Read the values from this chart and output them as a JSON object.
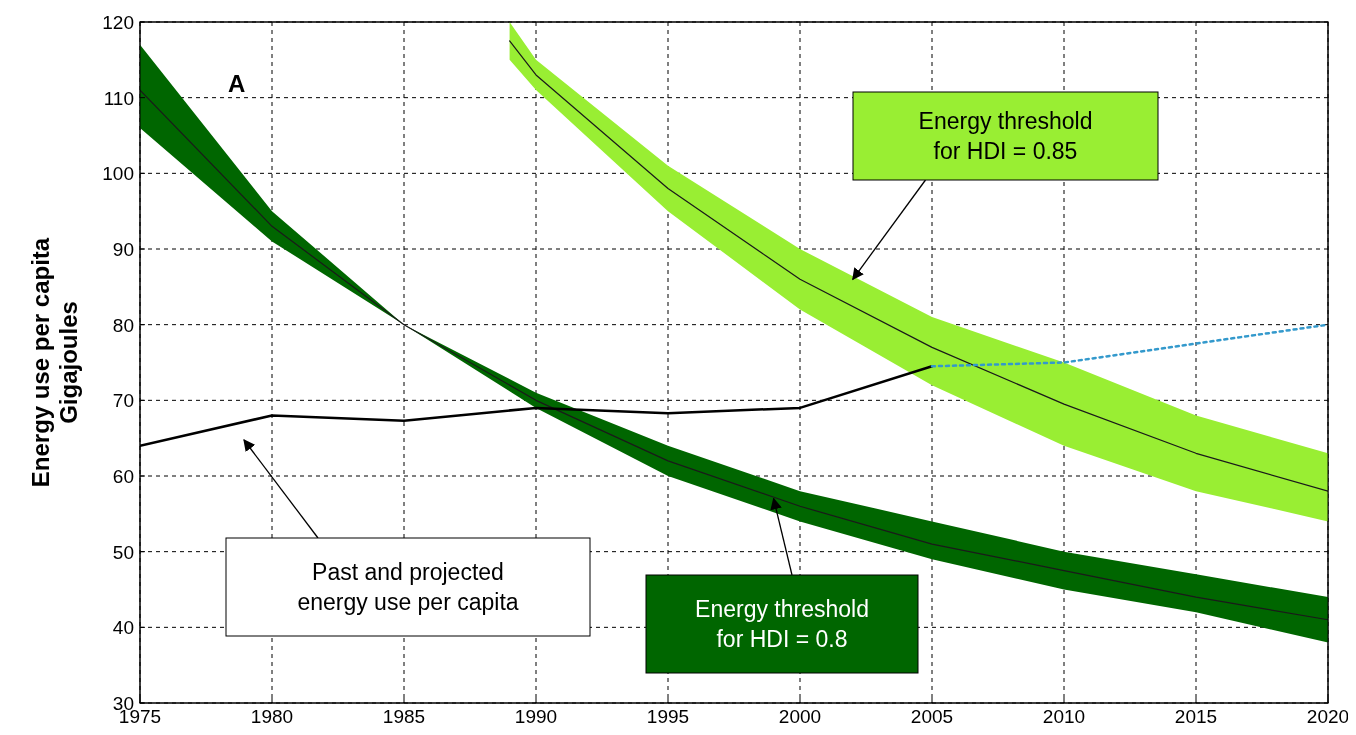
{
  "chart_data": {
    "type": "line",
    "ylabel": "Energy use per capita\nGigajoules",
    "xlim": [
      1975,
      2020
    ],
    "xticks": [
      1975,
      1980,
      1985,
      1990,
      1995,
      2000,
      2005,
      2010,
      2015,
      2020
    ],
    "ylim": [
      30,
      120
    ],
    "yticks": [
      30,
      40,
      50,
      60,
      70,
      80,
      90,
      100,
      110,
      120
    ],
    "grid": true,
    "marker": "none",
    "series": [
      {
        "color": "#1a1a1a",
        "x": [
          1975,
          1980,
          1985,
          1990,
          1995,
          2000,
          2005,
          2010,
          2015,
          2020
        ],
        "values": [
          111,
          93,
          80,
          70,
          62,
          56,
          51,
          47.5,
          44,
          41
        ],
        "lower": [
          106,
          91,
          80,
          69,
          60,
          54,
          49,
          45,
          42,
          38
        ],
        "upper": [
          117,
          95,
          80,
          71,
          64,
          58,
          54,
          50,
          47,
          44
        ]
      },
      {
        "color": "#1a1a1a",
        "x": [
          1989,
          1990,
          1995,
          2000,
          2005,
          2010,
          2015,
          2020
        ],
        "values": [
          117.5,
          113,
          98,
          86,
          77,
          69.5,
          63,
          58
        ],
        "lower": [
          115,
          111,
          95,
          82,
          72,
          64,
          58,
          54
        ],
        "upper": [
          120,
          115,
          101,
          90,
          81,
          75,
          68,
          63
        ]
      },
      {
        "color": "#000000",
        "line_style": "solid",
        "x": [
          1975,
          1980,
          1985,
          1990,
          1995,
          2000,
          2005
        ],
        "values": [
          64,
          68,
          67.3,
          69,
          68.3,
          69,
          74.5
        ]
      },
      {
        "color": "#3399cc",
        "line_style": "dotted",
        "x": [
          2005,
          2010,
          2015,
          2020
        ],
        "values": [
          74.5,
          75,
          77.5,
          80
        ]
      }
    ],
    "annotations": [
      "A",
      {
        "text": "Energy threshold\nfor HDI = 0.85",
        "x": 2002,
        "y": 86
      },
      {
        "text": "Energy threshold\nfor HDI = 0.8",
        "x": 1999,
        "y": 57
      },
      "Past and projected\nenergy use per capita"
    ]
  }
}
